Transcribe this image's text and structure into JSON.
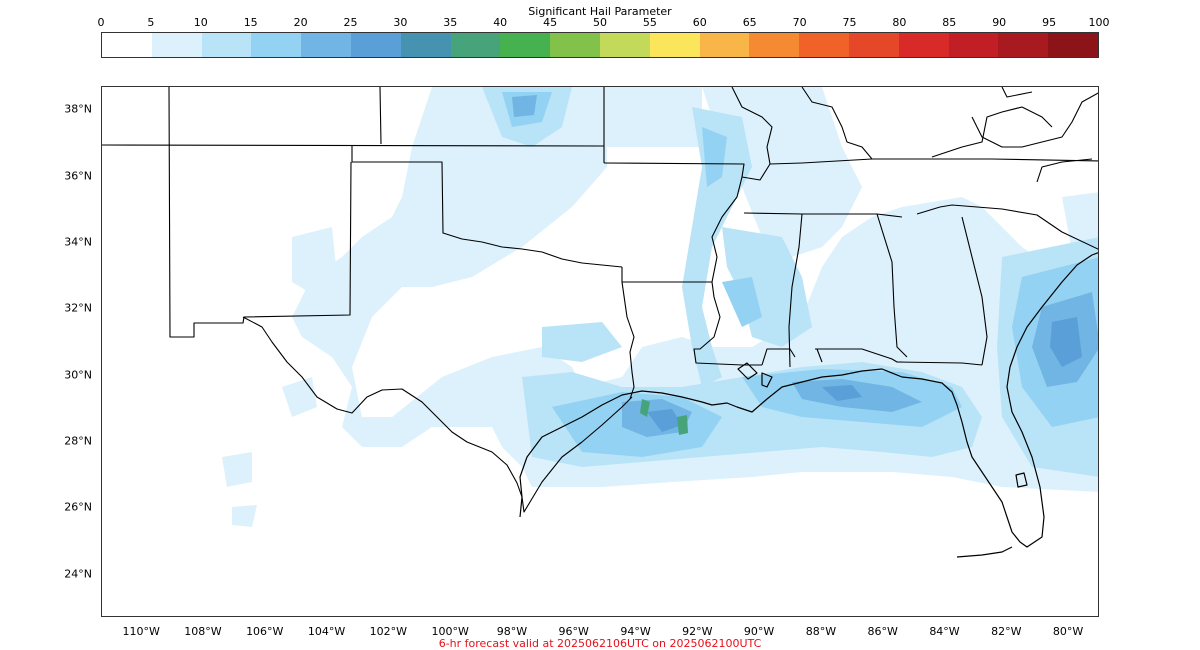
{
  "colorbar": {
    "title": "Significant Hail Parameter",
    "ticks": [
      "0",
      "5",
      "10",
      "15",
      "20",
      "25",
      "30",
      "35",
      "40",
      "45",
      "50",
      "55",
      "60",
      "65",
      "70",
      "75",
      "80",
      "85",
      "90",
      "95",
      "100"
    ],
    "colors": [
      "#ffffff",
      "#ddf1fc",
      "#b9e3f7",
      "#93d2f2",
      "#70b5e3",
      "#5a9fd8",
      "#4593b0",
      "#47a37a",
      "#45b14f",
      "#82c14a",
      "#c3d95a",
      "#fbe55a",
      "#f9b547",
      "#f68a33",
      "#f06227",
      "#e44829",
      "#d92a2a",
      "#c21e25",
      "#a81a20",
      "#8c1419"
    ]
  },
  "map": {
    "lat_labels": [
      "38°N",
      "36°N",
      "34°N",
      "32°N",
      "30°N",
      "28°N",
      "26°N",
      "24°N"
    ],
    "lon_labels": [
      "110°W",
      "108°W",
      "106°W",
      "104°W",
      "102°W",
      "100°W",
      "98°W",
      "96°W",
      "94°W",
      "92°W",
      "90°W",
      "88°W",
      "86°W",
      "84°W",
      "82°W",
      "80°W"
    ],
    "extent": {
      "lon": [
        -111.3,
        -79.0
      ],
      "lat": [
        22.7,
        38.7
      ]
    }
  },
  "caption": "6-hr forecast valid at 2025062106UTC on 2025062100UTC"
}
